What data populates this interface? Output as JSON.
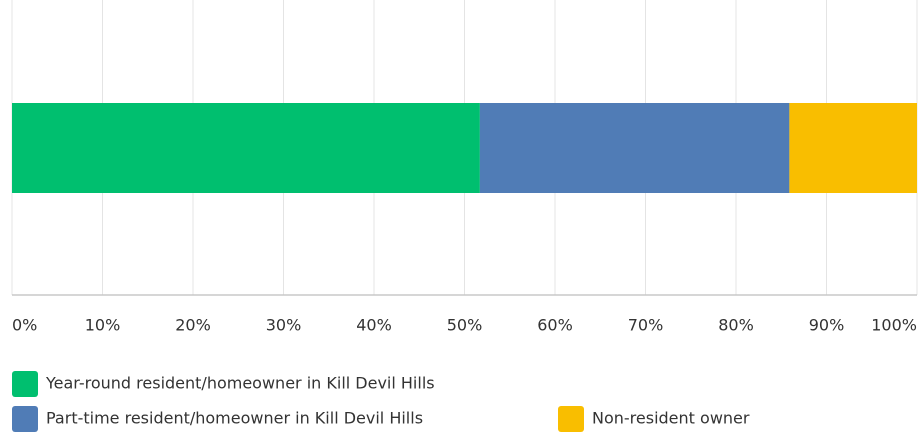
{
  "chart_data": {
    "type": "stacked-bar-horizontal",
    "categories": [
      null
    ],
    "series": [
      {
        "name": "Year-round resident/homeowner in Kill Devil Hills",
        "color": "#00bf6f",
        "values": [
          51.7
        ]
      },
      {
        "name": "Part-time resident/homeowner in Kill Devil Hills",
        "color": "#507cb6",
        "values": [
          34.2
        ]
      },
      {
        "name": "Non-resident owner",
        "color": "#f9be00",
        "values": [
          14.1
        ]
      }
    ],
    "xlim": [
      0,
      100
    ],
    "xticks": [
      {
        "value": 0,
        "label": "0%"
      },
      {
        "value": 10,
        "label": "10%"
      },
      {
        "value": 20,
        "label": "20%"
      },
      {
        "value": 30,
        "label": "30%"
      },
      {
        "value": 40,
        "label": "40%"
      },
      {
        "value": 50,
        "label": "50%"
      },
      {
        "value": 60,
        "label": "60%"
      },
      {
        "value": 70,
        "label": "70%"
      },
      {
        "value": 80,
        "label": "80%"
      },
      {
        "value": 90,
        "label": "90%"
      },
      {
        "value": 100,
        "label": "100%"
      }
    ],
    "grid": true
  }
}
